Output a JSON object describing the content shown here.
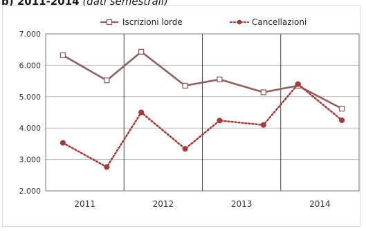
{
  "heading": {
    "label": "b) 2011-2014",
    "subtitle": "(dati semestrali)"
  },
  "chart_data": {
    "type": "line",
    "title": "b) 2011-2014 (dati semestrali)",
    "xlabel": "",
    "ylabel": "",
    "categories": [
      "2011",
      "2012",
      "2013",
      "2014"
    ],
    "x": [
      "2011 I",
      "2011 II",
      "2012 I",
      "2012 II",
      "2013 I",
      "2013 II",
      "2014 I",
      "2014 II"
    ],
    "ylim": [
      2000,
      7000
    ],
    "yticks": [
      2000,
      3000,
      4000,
      5000,
      6000,
      7000
    ],
    "ytick_labels": [
      "2.000",
      "3.000",
      "4.000",
      "5.000",
      "6.000",
      "7.000"
    ],
    "grid": {
      "horizontal": true,
      "vertical_year_separators": true
    },
    "legend_position": "top",
    "series": [
      {
        "name": "Iscrizioni lorde",
        "values": [
          6320,
          5520,
          6430,
          5350,
          5550,
          5140,
          5350,
          4620
        ],
        "color": "#8b6060",
        "line": "solid",
        "marker": "square-hollow"
      },
      {
        "name": "Cancellazioni",
        "values": [
          3530,
          2760,
          4500,
          3340,
          4240,
          4100,
          5400,
          4250
        ],
        "color": "#a63a3a",
        "line": "dotted",
        "marker": "circle-filled"
      }
    ]
  }
}
